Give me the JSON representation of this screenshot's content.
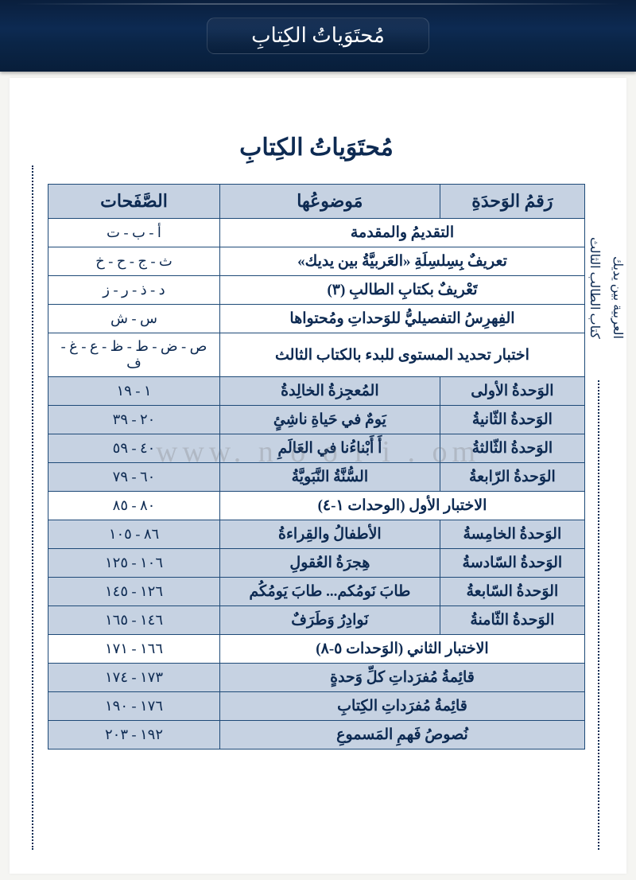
{
  "header": {
    "title": "مُحتَوَياتُ الكِتابِ"
  },
  "page": {
    "title": "مُحتَوَياتُ الكِتابِ",
    "side_labels": [
      "العربية بين يديك",
      "كتاب الطالب الثالث"
    ],
    "watermark": "www.  n o o       r i    .  om"
  },
  "table": {
    "headers": {
      "unit": "رَقمُ الوَحدَةِ",
      "topic": "مَوضوعُها",
      "pages": "الصَّفَحات"
    },
    "rows": [
      {
        "type": "span2",
        "topic": "التقديمُ والمقدمة",
        "pages": "أ - ب - ت"
      },
      {
        "type": "span2",
        "topic": "تعريفٌ بِسِلسِلَةِ «العَربيَّةُ بين يديك»",
        "pages": "ث - ج - ح - خ"
      },
      {
        "type": "span2",
        "topic": "تَعْريفٌ بكتابِ الطالبِ (٣)",
        "pages": "د - ذ - ر - ز"
      },
      {
        "type": "span2",
        "topic": "الفِهرِسُ التفصيليُّ للوَحداتِ ومُحتواها",
        "pages": "س - ش"
      },
      {
        "type": "span2",
        "topic": "اختبار تحديد المستوى للبدء بالكتاب الثالث",
        "pages": "ص - ض - ط - ظ - ع - غ - ف"
      },
      {
        "type": "unit",
        "unit": "الوَحدةُ الأولى",
        "topic": "المُعجِزةُ الخالِدةُ",
        "pages": "١ - ١٩"
      },
      {
        "type": "unit",
        "unit": "الوَحدةُ الثّانيةُ",
        "topic": "يَومٌ في حَياةِ ناشِئٍ",
        "pages": "٢٠ - ٣٩"
      },
      {
        "type": "unit",
        "unit": "الوَحدةُ الثّالثةُ",
        "topic": "أَ  أَبْناءُنا في العَالَمِ",
        "pages": "٤٠ - ٥٩"
      },
      {
        "type": "unit",
        "unit": "الوَحدةُ الرّابعةُ",
        "topic": "السُّنَّةُ النَّبَويَّةُ",
        "pages": "٦٠ - ٧٩"
      },
      {
        "type": "span2",
        "topic": "الاختبار الأول (الوحدات ١-٤)",
        "pages": "٨٠ - ٨٥"
      },
      {
        "type": "unit",
        "unit": "الوَحدةُ الخامِسةُ",
        "topic": "الأطفالُ والقِراءةُ",
        "pages": "٨٦ - ١٠٥"
      },
      {
        "type": "unit",
        "unit": "الوَحدةُ السّادسةُ",
        "topic": "هِجرَةُ العُقولِ",
        "pages": "١٠٦ - ١٢٥"
      },
      {
        "type": "unit",
        "unit": "الوَحدةُ السّابعةُ",
        "topic": "طابَ نَومُكم... طابَ يَومُكُم",
        "pages": "١٢٦ - ١٤٥"
      },
      {
        "type": "unit",
        "unit": "الوَحدةُ الثّامنةُ",
        "topic": "نَوادِرُ وَطَرَفٌ",
        "pages": "١٤٦ - ١٦٥"
      },
      {
        "type": "span2",
        "topic": "الاختبار الثاني (الوَحدات ٥-٨)",
        "pages": "١٦٦ - ١٧١"
      },
      {
        "type": "span2-shaded",
        "topic": "قائِمةُ مُفرَداتِ كلِّ وَحدةٍ",
        "pages": "١٧٣ - ١٧٤"
      },
      {
        "type": "span2-shaded",
        "topic": "قائِمةُ مُفرَداتِ الكِتابِ",
        "pages": "١٧٦ - ١٩٠"
      },
      {
        "type": "span2-shaded",
        "topic": "نُصوصُ فَهمِ المَسموعِ",
        "pages": "١٩٢ - ٢٠٣"
      }
    ]
  }
}
